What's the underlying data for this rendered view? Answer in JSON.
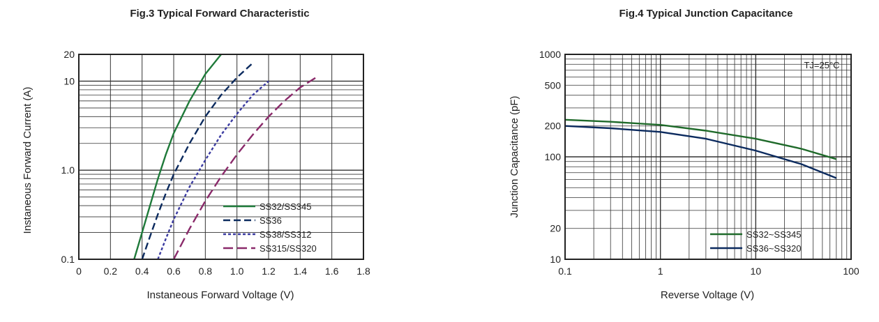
{
  "chart_data": [
    {
      "type": "line",
      "title": "Fig.3  Typical Forward Characteristic",
      "xlabel": "Instaneous Forward Voltage (V)",
      "ylabel": "Instaneous Forward Current (A)",
      "x_ticks": [
        "0",
        "0.2",
        "0.4",
        "0.6",
        "0.8",
        "1.0",
        "1.2",
        "1.4",
        "1.6",
        "1.8"
      ],
      "y_ticks": [
        {
          "v": 20,
          "label": "20"
        },
        {
          "v": 10,
          "label": "10"
        },
        {
          "v": 1,
          "label": "1.0"
        },
        {
          "v": 0.1,
          "label": "0.1"
        }
      ],
      "xlim": [
        0,
        1.8
      ],
      "ylim": [
        0.1,
        20
      ],
      "y_scale": "log",
      "grid": true,
      "legend_position": "bottom-right",
      "series": [
        {
          "name": "SS32/SS345",
          "color": "#1f7a3a",
          "dash": "solid",
          "x": [
            0.35,
            0.4,
            0.45,
            0.5,
            0.55,
            0.6,
            0.7,
            0.8,
            0.9
          ],
          "y": [
            0.1,
            0.2,
            0.4,
            0.8,
            1.5,
            2.6,
            6.0,
            12,
            20
          ]
        },
        {
          "name": "SS36",
          "color": "#0b2a5e",
          "dash": "dashed",
          "x": [
            0.4,
            0.45,
            0.5,
            0.55,
            0.6,
            0.7,
            0.8,
            0.9,
            1.0,
            1.1
          ],
          "y": [
            0.1,
            0.18,
            0.32,
            0.55,
            0.9,
            2.0,
            4.0,
            7.0,
            11,
            16
          ]
        },
        {
          "name": "SS38/SS312",
          "color": "#3a3aa0",
          "dash": "short",
          "x": [
            0.5,
            0.55,
            0.6,
            0.7,
            0.8,
            0.9,
            1.0,
            1.1,
            1.2
          ],
          "y": [
            0.1,
            0.17,
            0.28,
            0.65,
            1.3,
            2.5,
            4.3,
            7.0,
            10
          ]
        },
        {
          "name": "SS315/SS320",
          "color": "#8a2a6a",
          "dash": "long",
          "x": [
            0.6,
            0.7,
            0.8,
            0.9,
            1.0,
            1.1,
            1.2,
            1.3,
            1.4,
            1.5
          ],
          "y": [
            0.1,
            0.22,
            0.45,
            0.85,
            1.5,
            2.5,
            4.0,
            6.0,
            8.5,
            11
          ]
        }
      ]
    },
    {
      "type": "line",
      "title": "Fig.4  Typical Junction Capacitance",
      "xlabel": "Reverse Voltage (V)",
      "ylabel": "Junction Capacitance (pF)",
      "annotation": "TJ=25°C",
      "x_ticks": [
        {
          "v": 0.1,
          "label": "0.1"
        },
        {
          "v": 1,
          "label": "1"
        },
        {
          "v": 10,
          "label": "10"
        },
        {
          "v": 100,
          "label": "100"
        }
      ],
      "y_ticks": [
        {
          "v": 1000,
          "label": "1000"
        },
        {
          "v": 500,
          "label": "500"
        },
        {
          "v": 200,
          "label": "200"
        },
        {
          "v": 100,
          "label": "100"
        },
        {
          "v": 20,
          "label": "20"
        },
        {
          "v": 10,
          "label": "10"
        }
      ],
      "xlim": [
        0.1,
        100
      ],
      "ylim": [
        10,
        1000
      ],
      "x_scale": "log",
      "y_scale": "log",
      "grid": true,
      "legend_position": "bottom-right",
      "series": [
        {
          "name": "SS32~SS345",
          "color": "#1f6a2a",
          "dash": "solid",
          "x": [
            0.1,
            0.3,
            1,
            3,
            10,
            30,
            70
          ],
          "y": [
            230,
            220,
            205,
            180,
            150,
            120,
            95
          ]
        },
        {
          "name": "SS36~SS320",
          "color": "#0b2a5e",
          "dash": "solid",
          "x": [
            0.1,
            0.3,
            1,
            3,
            10,
            30,
            70
          ],
          "y": [
            200,
            190,
            175,
            150,
            115,
            85,
            62
          ]
        }
      ]
    }
  ]
}
